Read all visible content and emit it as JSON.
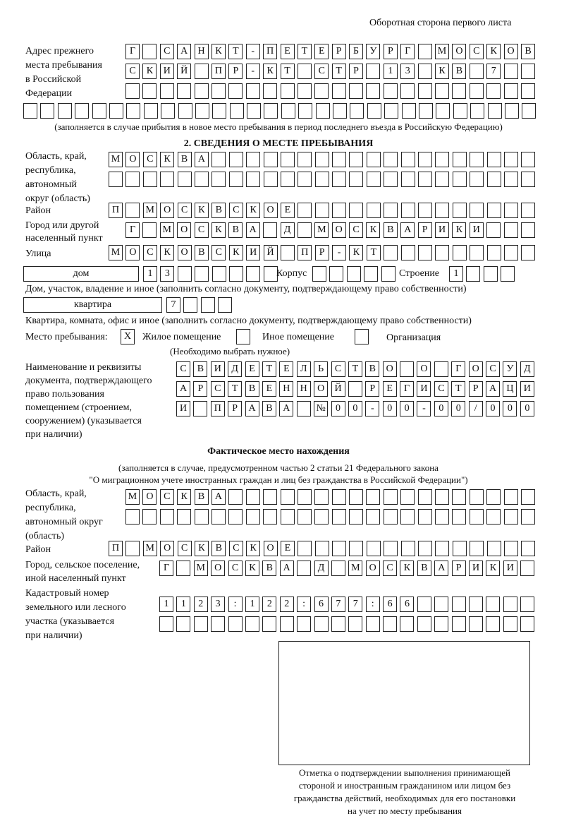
{
  "header": {
    "page_side": "Оборотная сторона первого листа"
  },
  "previous_address": {
    "label": [
      "Адрес прежнего",
      "места пребывания",
      "в Российской",
      "Федерации"
    ],
    "rows": [
      [
        "Г",
        "",
        "С",
        "А",
        "Н",
        "К",
        "Т",
        "-",
        "П",
        "Е",
        "Т",
        "Е",
        "Р",
        "Б",
        "У",
        "Р",
        "Г",
        "",
        "М",
        "О",
        "С",
        "К",
        "О",
        "В"
      ],
      [
        "С",
        "К",
        "И",
        "Й",
        "",
        "П",
        "Р",
        "-",
        "К",
        "Т",
        "",
        "С",
        "Т",
        "Р",
        "",
        "1",
        "3",
        "",
        "К",
        "В",
        "",
        "7",
        "",
        ""
      ],
      [
        "",
        "",
        "",
        "",
        "",
        "",
        "",
        "",
        "",
        "",
        "",
        "",
        "",
        "",
        "",
        "",
        "",
        "",
        "",
        "",
        "",
        "",
        "",
        ""
      ],
      [
        "",
        "",
        "",
        "",
        "",
        "",
        "",
        "",
        "",
        "",
        "",
        "",
        "",
        "",
        "",
        "",
        "",
        "",
        "",
        "",
        "",
        "",
        "",
        "",
        "",
        "",
        "",
        "",
        "",
        ""
      ]
    ],
    "note": "(заполняется в случае прибытия в новое место пребывания в период последнего въезда в Российскую Федерацию)"
  },
  "section2": {
    "title": "2. СВЕДЕНИЯ О МЕСТЕ ПРЕБЫВАНИЯ",
    "region_label": [
      "Область, край,",
      "республика,",
      "автономный",
      "округ (область)"
    ],
    "region_rows": [
      [
        "М",
        "О",
        "С",
        "К",
        "В",
        "А",
        "",
        "",
        "",
        "",
        "",
        "",
        "",
        "",
        "",
        "",
        "",
        "",
        "",
        "",
        "",
        "",
        "",
        "",
        ""
      ],
      [
        "",
        "",
        "",
        "",
        "",
        "",
        "",
        "",
        "",
        "",
        "",
        "",
        "",
        "",
        "",
        "",
        "",
        "",
        "",
        "",
        "",
        "",
        "",
        "",
        ""
      ]
    ],
    "district_label": "Район",
    "district": [
      "П",
      "",
      "М",
      "О",
      "С",
      "К",
      "В",
      "С",
      "К",
      "О",
      "Е",
      "",
      "",
      "",
      "",
      "",
      "",
      "",
      "",
      "",
      "",
      "",
      "",
      "",
      ""
    ],
    "city_label": [
      "Город или другой",
      "населенный пункт"
    ],
    "city": [
      "Г",
      "",
      "М",
      "О",
      "С",
      "К",
      "В",
      "А",
      "",
      "Д",
      "",
      "М",
      "О",
      "С",
      "К",
      "В",
      "А",
      "Р",
      "И",
      "К",
      "И",
      "",
      "",
      ""
    ],
    "street_label": "Улица",
    "street": [
      "М",
      "О",
      "С",
      "К",
      "О",
      "В",
      "С",
      "К",
      "И",
      "Й",
      "",
      "П",
      "Р",
      "-",
      "К",
      "Т",
      "",
      "",
      "",
      "",
      "",
      "",
      "",
      "",
      ""
    ],
    "house_type": "дом",
    "house_number": [
      "1",
      "3",
      "",
      "",
      "",
      "",
      "",
      ""
    ],
    "korpus_label": "Корпус",
    "korpus": [
      "",
      "",
      "",
      "",
      ""
    ],
    "building_label": "Строение",
    "building": [
      "1",
      "",
      "",
      ""
    ],
    "house_note": "Дом, участок, владение и иное (заполнить согласно документу, подтверждающему право собственности)",
    "apartment_type": "квартира",
    "apartment": [
      "7",
      "",
      "",
      ""
    ],
    "apartment_note": "Квартира, комната, офис и иное (заполнить согласно документу, подтверждающему право собственности)",
    "stay_place_label": "Место пребывания:",
    "options": [
      {
        "label": "Жилое помещение",
        "mark": "X"
      },
      {
        "label": "Иное помещение",
        "mark": ""
      },
      {
        "label": "Организация",
        "mark": ""
      }
    ],
    "options_note": "(Необходимо выбрать нужное)",
    "document_label": [
      "Наименование и реквизиты",
      "документа, подтверждающего",
      "право пользования",
      "помещением (строением,",
      "сооружением) (указывается",
      "при наличии)"
    ],
    "document_rows": [
      [
        "С",
        "В",
        "И",
        "Д",
        "Е",
        "Т",
        "Е",
        "Л",
        "Ь",
        "С",
        "Т",
        "В",
        "О",
        "",
        "О",
        "",
        "Г",
        "О",
        "С",
        "У",
        "Д"
      ],
      [
        "А",
        "Р",
        "С",
        "Т",
        "В",
        "Е",
        "Н",
        "Н",
        "О",
        "Й",
        "",
        "Р",
        "Е",
        "Г",
        "И",
        "С",
        "Т",
        "Р",
        "А",
        "Ц",
        "И"
      ],
      [
        "И",
        "",
        "П",
        "Р",
        "А",
        "В",
        "А",
        "",
        "№",
        "0",
        "0",
        "-",
        "0",
        "0",
        "-",
        "0",
        "0",
        "/",
        "0",
        "0",
        "0"
      ]
    ]
  },
  "actual_location": {
    "title": "Фактическое место нахождения",
    "note": [
      "(заполняется в случае, предусмотренном частью 2 статьи 21 Федерального закона",
      "\"О миграционном учете иностранных граждан и лиц без гражданства в Российской Федерации\")"
    ],
    "region_label": [
      "Область, край,",
      "республика,",
      "автономный округ",
      "(область)"
    ],
    "region_rows": [
      [
        "М",
        "О",
        "С",
        "К",
        "В",
        "А",
        "",
        "",
        "",
        "",
        "",
        "",
        "",
        "",
        "",
        "",
        "",
        "",
        "",
        "",
        "",
        "",
        "",
        ""
      ],
      [
        "",
        "",
        "",
        "",
        "",
        "",
        "",
        "",
        "",
        "",
        "",
        "",
        "",
        "",
        "",
        "",
        "",
        "",
        "",
        "",
        "",
        "",
        "",
        ""
      ]
    ],
    "district_label": "Район",
    "district": [
      "П",
      "",
      "М",
      "О",
      "С",
      "К",
      "В",
      "С",
      "К",
      "О",
      "Е",
      "",
      "",
      "",
      "",
      "",
      "",
      "",
      "",
      "",
      "",
      "",
      "",
      "",
      ""
    ],
    "city_label": [
      "Город, сельское поселение,",
      "иной населенный пункт"
    ],
    "city": [
      "Г",
      "",
      "М",
      "О",
      "С",
      "К",
      "В",
      "А",
      "",
      "Д",
      "",
      "М",
      "О",
      "С",
      "К",
      "В",
      "А",
      "Р",
      "И",
      "К",
      "И",
      ""
    ],
    "cadastral_label": [
      "Кадастровый номер",
      "земельного или лесного",
      "участка (указывается",
      "при наличии)"
    ],
    "cadastral_rows": [
      [
        "1",
        "1",
        "2",
        "3",
        ":",
        "1",
        "2",
        "2",
        ":",
        "6",
        "7",
        "7",
        ":",
        "6",
        "6",
        "",
        "",
        "",
        "",
        "",
        "",
        ""
      ],
      [
        "",
        "",
        "",
        "",
        "",
        "",
        "",
        "",
        "",
        "",
        "",
        "",
        "",
        "",
        "",
        "",
        "",
        "",
        "",
        "",
        "",
        ""
      ]
    ]
  },
  "confirmation": {
    "caption": [
      "Отметка о подтверждении выполнения принимающей",
      "стороной и иностранным гражданином или лицом без",
      "гражданства действий, необходимых для его постановки",
      "на учет по месту пребывания"
    ]
  }
}
